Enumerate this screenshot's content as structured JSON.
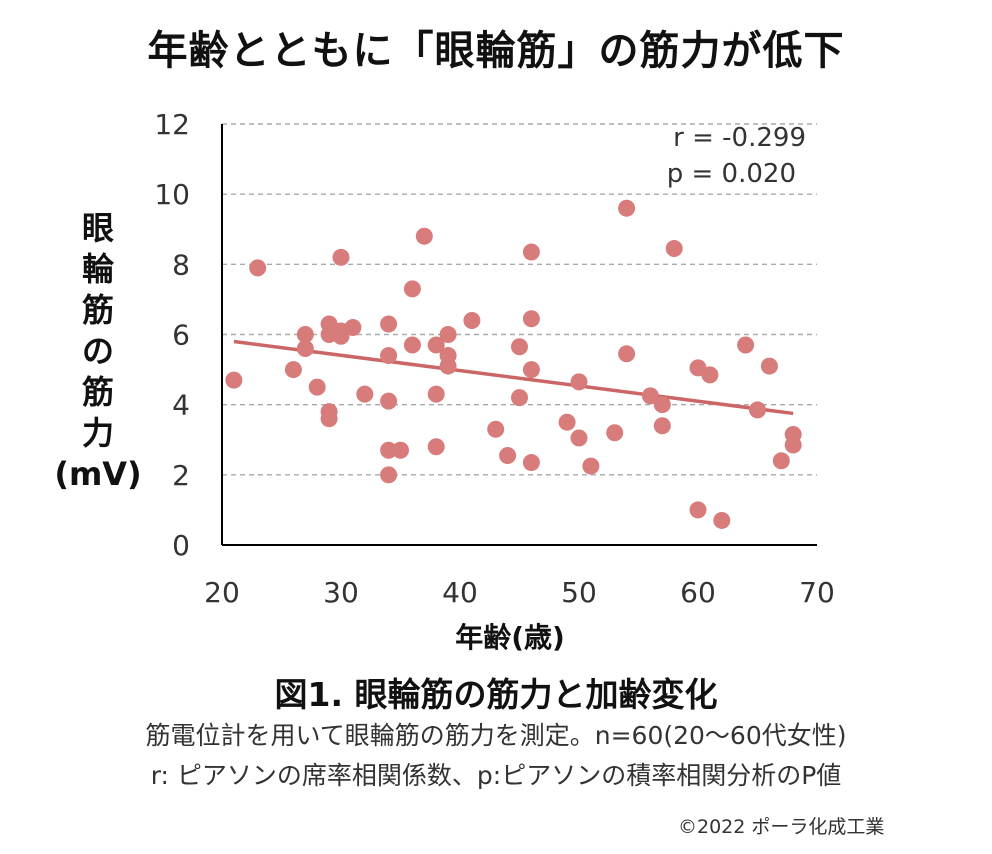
{
  "title": "年齢とともに「眼輪筋」の筋力が低下",
  "chart_data": {
    "type": "scatter",
    "xlabel": "年齢(歳)",
    "ylabel_lines": [
      "眼",
      "輪",
      "筋",
      "の",
      "筋",
      "力",
      "(mV)"
    ],
    "xlim": [
      20,
      70
    ],
    "ylim": [
      0,
      12
    ],
    "xticks": [
      20,
      30,
      40,
      50,
      60,
      70
    ],
    "yticks": [
      0,
      2,
      4,
      6,
      8,
      10,
      12
    ],
    "grid": "horizontal-dashed",
    "annotations": [
      "r = -0.299",
      "p = 0.020"
    ],
    "trendline": {
      "x": [
        21,
        68
      ],
      "y": [
        5.8,
        3.75
      ]
    },
    "colors": {
      "points": "#d77b7b",
      "trend": "#cc6666",
      "grid": "#aaaaaa",
      "axis": "#000000"
    },
    "points": [
      {
        "x": 21,
        "y": 4.7
      },
      {
        "x": 23,
        "y": 7.9
      },
      {
        "x": 26,
        "y": 5.0
      },
      {
        "x": 27,
        "y": 6.0
      },
      {
        "x": 27,
        "y": 5.6
      },
      {
        "x": 28,
        "y": 4.5
      },
      {
        "x": 29,
        "y": 6.3
      },
      {
        "x": 29,
        "y": 6.0
      },
      {
        "x": 29,
        "y": 3.8
      },
      {
        "x": 29,
        "y": 3.6
      },
      {
        "x": 30,
        "y": 8.2
      },
      {
        "x": 30,
        "y": 6.1
      },
      {
        "x": 30,
        "y": 5.95
      },
      {
        "x": 31,
        "y": 6.2
      },
      {
        "x": 32,
        "y": 4.3
      },
      {
        "x": 34,
        "y": 6.3
      },
      {
        "x": 34,
        "y": 5.4
      },
      {
        "x": 34,
        "y": 4.1
      },
      {
        "x": 34,
        "y": 2.7
      },
      {
        "x": 34,
        "y": 2.0
      },
      {
        "x": 35,
        "y": 2.7
      },
      {
        "x": 36,
        "y": 7.3
      },
      {
        "x": 36,
        "y": 5.7
      },
      {
        "x": 37,
        "y": 8.8
      },
      {
        "x": 38,
        "y": 5.7
      },
      {
        "x": 38,
        "y": 4.3
      },
      {
        "x": 38,
        "y": 2.8
      },
      {
        "x": 39,
        "y": 6.0
      },
      {
        "x": 39,
        "y": 5.4
      },
      {
        "x": 39,
        "y": 5.1
      },
      {
        "x": 41,
        "y": 6.4
      },
      {
        "x": 43,
        "y": 3.3
      },
      {
        "x": 44,
        "y": 2.55
      },
      {
        "x": 45,
        "y": 5.65
      },
      {
        "x": 45,
        "y": 4.2
      },
      {
        "x": 46,
        "y": 8.35
      },
      {
        "x": 46,
        "y": 6.45
      },
      {
        "x": 46,
        "y": 5.0
      },
      {
        "x": 46,
        "y": 2.35
      },
      {
        "x": 49,
        "y": 3.5
      },
      {
        "x": 50,
        "y": 4.65
      },
      {
        "x": 50,
        "y": 3.05
      },
      {
        "x": 51,
        "y": 2.25
      },
      {
        "x": 53,
        "y": 3.2
      },
      {
        "x": 54,
        "y": 9.6
      },
      {
        "x": 54,
        "y": 5.45
      },
      {
        "x": 56,
        "y": 4.25
      },
      {
        "x": 57,
        "y": 4.0
      },
      {
        "x": 57,
        "y": 3.4
      },
      {
        "x": 58,
        "y": 8.45
      },
      {
        "x": 60,
        "y": 5.05
      },
      {
        "x": 60,
        "y": 1.0
      },
      {
        "x": 61,
        "y": 4.85
      },
      {
        "x": 62,
        "y": 0.7
      },
      {
        "x": 64,
        "y": 5.7
      },
      {
        "x": 65,
        "y": 3.85
      },
      {
        "x": 66,
        "y": 5.1
      },
      {
        "x": 67,
        "y": 2.4
      },
      {
        "x": 68,
        "y": 3.15
      },
      {
        "x": 68,
        "y": 2.85
      }
    ]
  },
  "figure_title": "図1. 眼輪筋の筋力と加齢変化",
  "description_line1": "筋電位計を用いて眼輪筋の筋力を測定。n=60(20～60代女性)",
  "description_line2": "r: ピアソンの席率相関係数、p:ピアソンの積率相関分析のP値",
  "copyright": "©2022 ポーラ化成工業"
}
